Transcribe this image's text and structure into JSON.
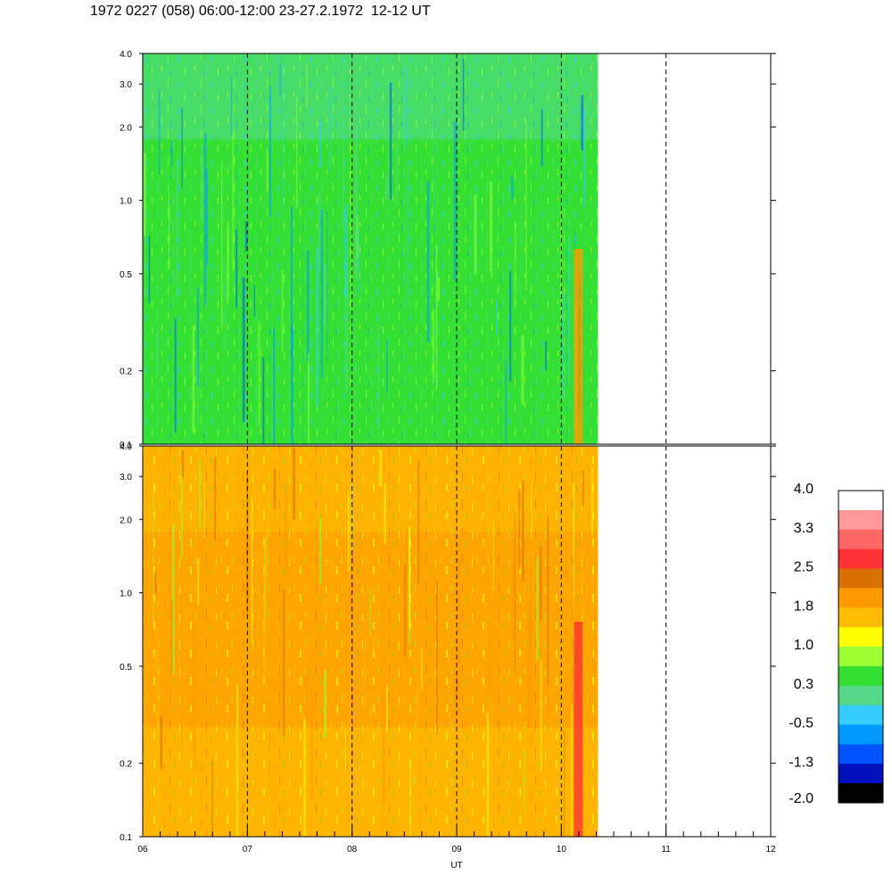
{
  "title": "1972 0227 (058) 06:00-12:00 23-27.2.1972  12-12 UT",
  "chart_data": [
    {
      "type": "heatmap",
      "panel": "top",
      "ylim": [
        0.1,
        4.0
      ],
      "y_scale": "log",
      "y_ticks": [
        {
          "value": 0.1,
          "label": "0.1"
        },
        {
          "value": 0.2,
          "label": "0.2"
        },
        {
          "value": 0.5,
          "label": "0.5"
        },
        {
          "value": 1.0,
          "label": "1.0"
        },
        {
          "value": 2.0,
          "label": "2.0"
        },
        {
          "value": 3.0,
          "label": "3.0"
        },
        {
          "value": 4.0,
          "label": "4.0"
        }
      ],
      "xlim": [
        6,
        12
      ],
      "data_extent_x": [
        6,
        10.35
      ],
      "dominant_level": 0.3,
      "dominant_color": "#33e033"
    },
    {
      "type": "heatmap",
      "panel": "bottom",
      "ylim": [
        0.1,
        4.0
      ],
      "y_scale": "log",
      "y_ticks": [
        {
          "value": 0.1,
          "label": "0.1"
        },
        {
          "value": 0.2,
          "label": "0.2"
        },
        {
          "value": 0.5,
          "label": "0.5"
        },
        {
          "value": 1.0,
          "label": "1.0"
        },
        {
          "value": 2.0,
          "label": "2.0"
        },
        {
          "value": 3.0,
          "label": "3.0"
        },
        {
          "value": 4.0,
          "label": "4.0"
        }
      ],
      "xlim": [
        6,
        12
      ],
      "data_extent_x": [
        6,
        10.35
      ],
      "dominant_level": 1.8,
      "dominant_color": "#ffa500"
    }
  ],
  "x_axis": {
    "label": "UT",
    "ticks": [
      {
        "value": 6,
        "label": "06"
      },
      {
        "value": 7,
        "label": "07"
      },
      {
        "value": 8,
        "label": "08"
      },
      {
        "value": 9,
        "label": "09"
      },
      {
        "value": 10,
        "label": "10"
      },
      {
        "value": 11,
        "label": "11"
      },
      {
        "value": 12,
        "label": "12"
      }
    ],
    "dashed_lines_at": [
      7,
      8,
      9,
      10,
      11
    ]
  },
  "colorbar": {
    "labels": [
      "4.0",
      "3.3",
      "2.5",
      "1.8",
      "1.0",
      "0.3",
      "-0.5",
      "-1.3",
      "-2.0"
    ],
    "colors": [
      "#ffffff",
      "#ff9999",
      "#ff6666",
      "#ff3333",
      "#d87000",
      "#ff9900",
      "#ffbb00",
      "#ffff00",
      "#99ff33",
      "#33e033",
      "#55d888",
      "#33ccff",
      "#0099ff",
      "#0055ff",
      "#0011bb",
      "#000000"
    ]
  }
}
